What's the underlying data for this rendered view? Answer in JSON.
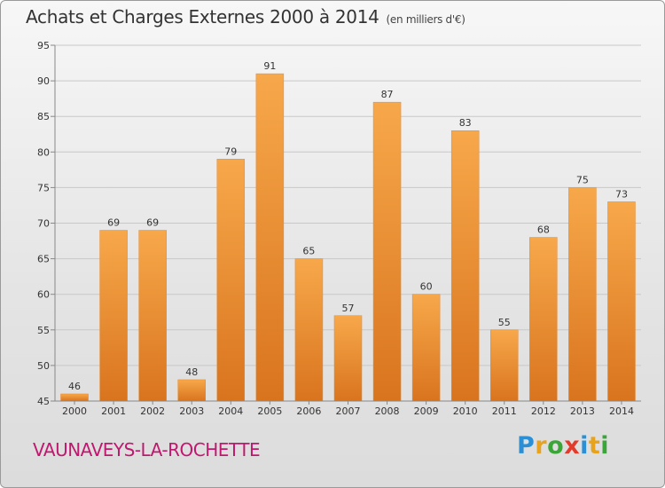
{
  "title": "Achats et Charges Externes 2000 à 2014",
  "subtitle": "(en milliers d'€)",
  "town": "VAUNAVEYS-LA-ROCHETTE",
  "logo": {
    "letters": [
      "P",
      "r",
      "o",
      "x",
      "i",
      "t",
      "i"
    ],
    "colors": [
      "#2b8fd6",
      "#e8a21c",
      "#3aa637",
      "#e23b2b",
      "#2b8fd6",
      "#e8a21c",
      "#3aa637"
    ]
  },
  "colors": {
    "bar": "#f09a35",
    "bar_dark": "#d9741e",
    "town": "#c0186f"
  },
  "chart_data": {
    "type": "bar",
    "title": "Achats et Charges Externes 2000 à 2014",
    "subtitle": "(en milliers d'€)",
    "categories": [
      "2000",
      "2001",
      "2002",
      "2003",
      "2004",
      "2005",
      "2006",
      "2007",
      "2008",
      "2009",
      "2010",
      "2011",
      "2012",
      "2013",
      "2014"
    ],
    "values": [
      46,
      69,
      69,
      48,
      79,
      91,
      65,
      57,
      87,
      60,
      83,
      55,
      68,
      75,
      73
    ],
    "ylim": [
      45,
      95
    ],
    "yticks": [
      45,
      50,
      55,
      60,
      65,
      70,
      75,
      80,
      85,
      90,
      95
    ],
    "grid": true,
    "data_labels": true
  }
}
